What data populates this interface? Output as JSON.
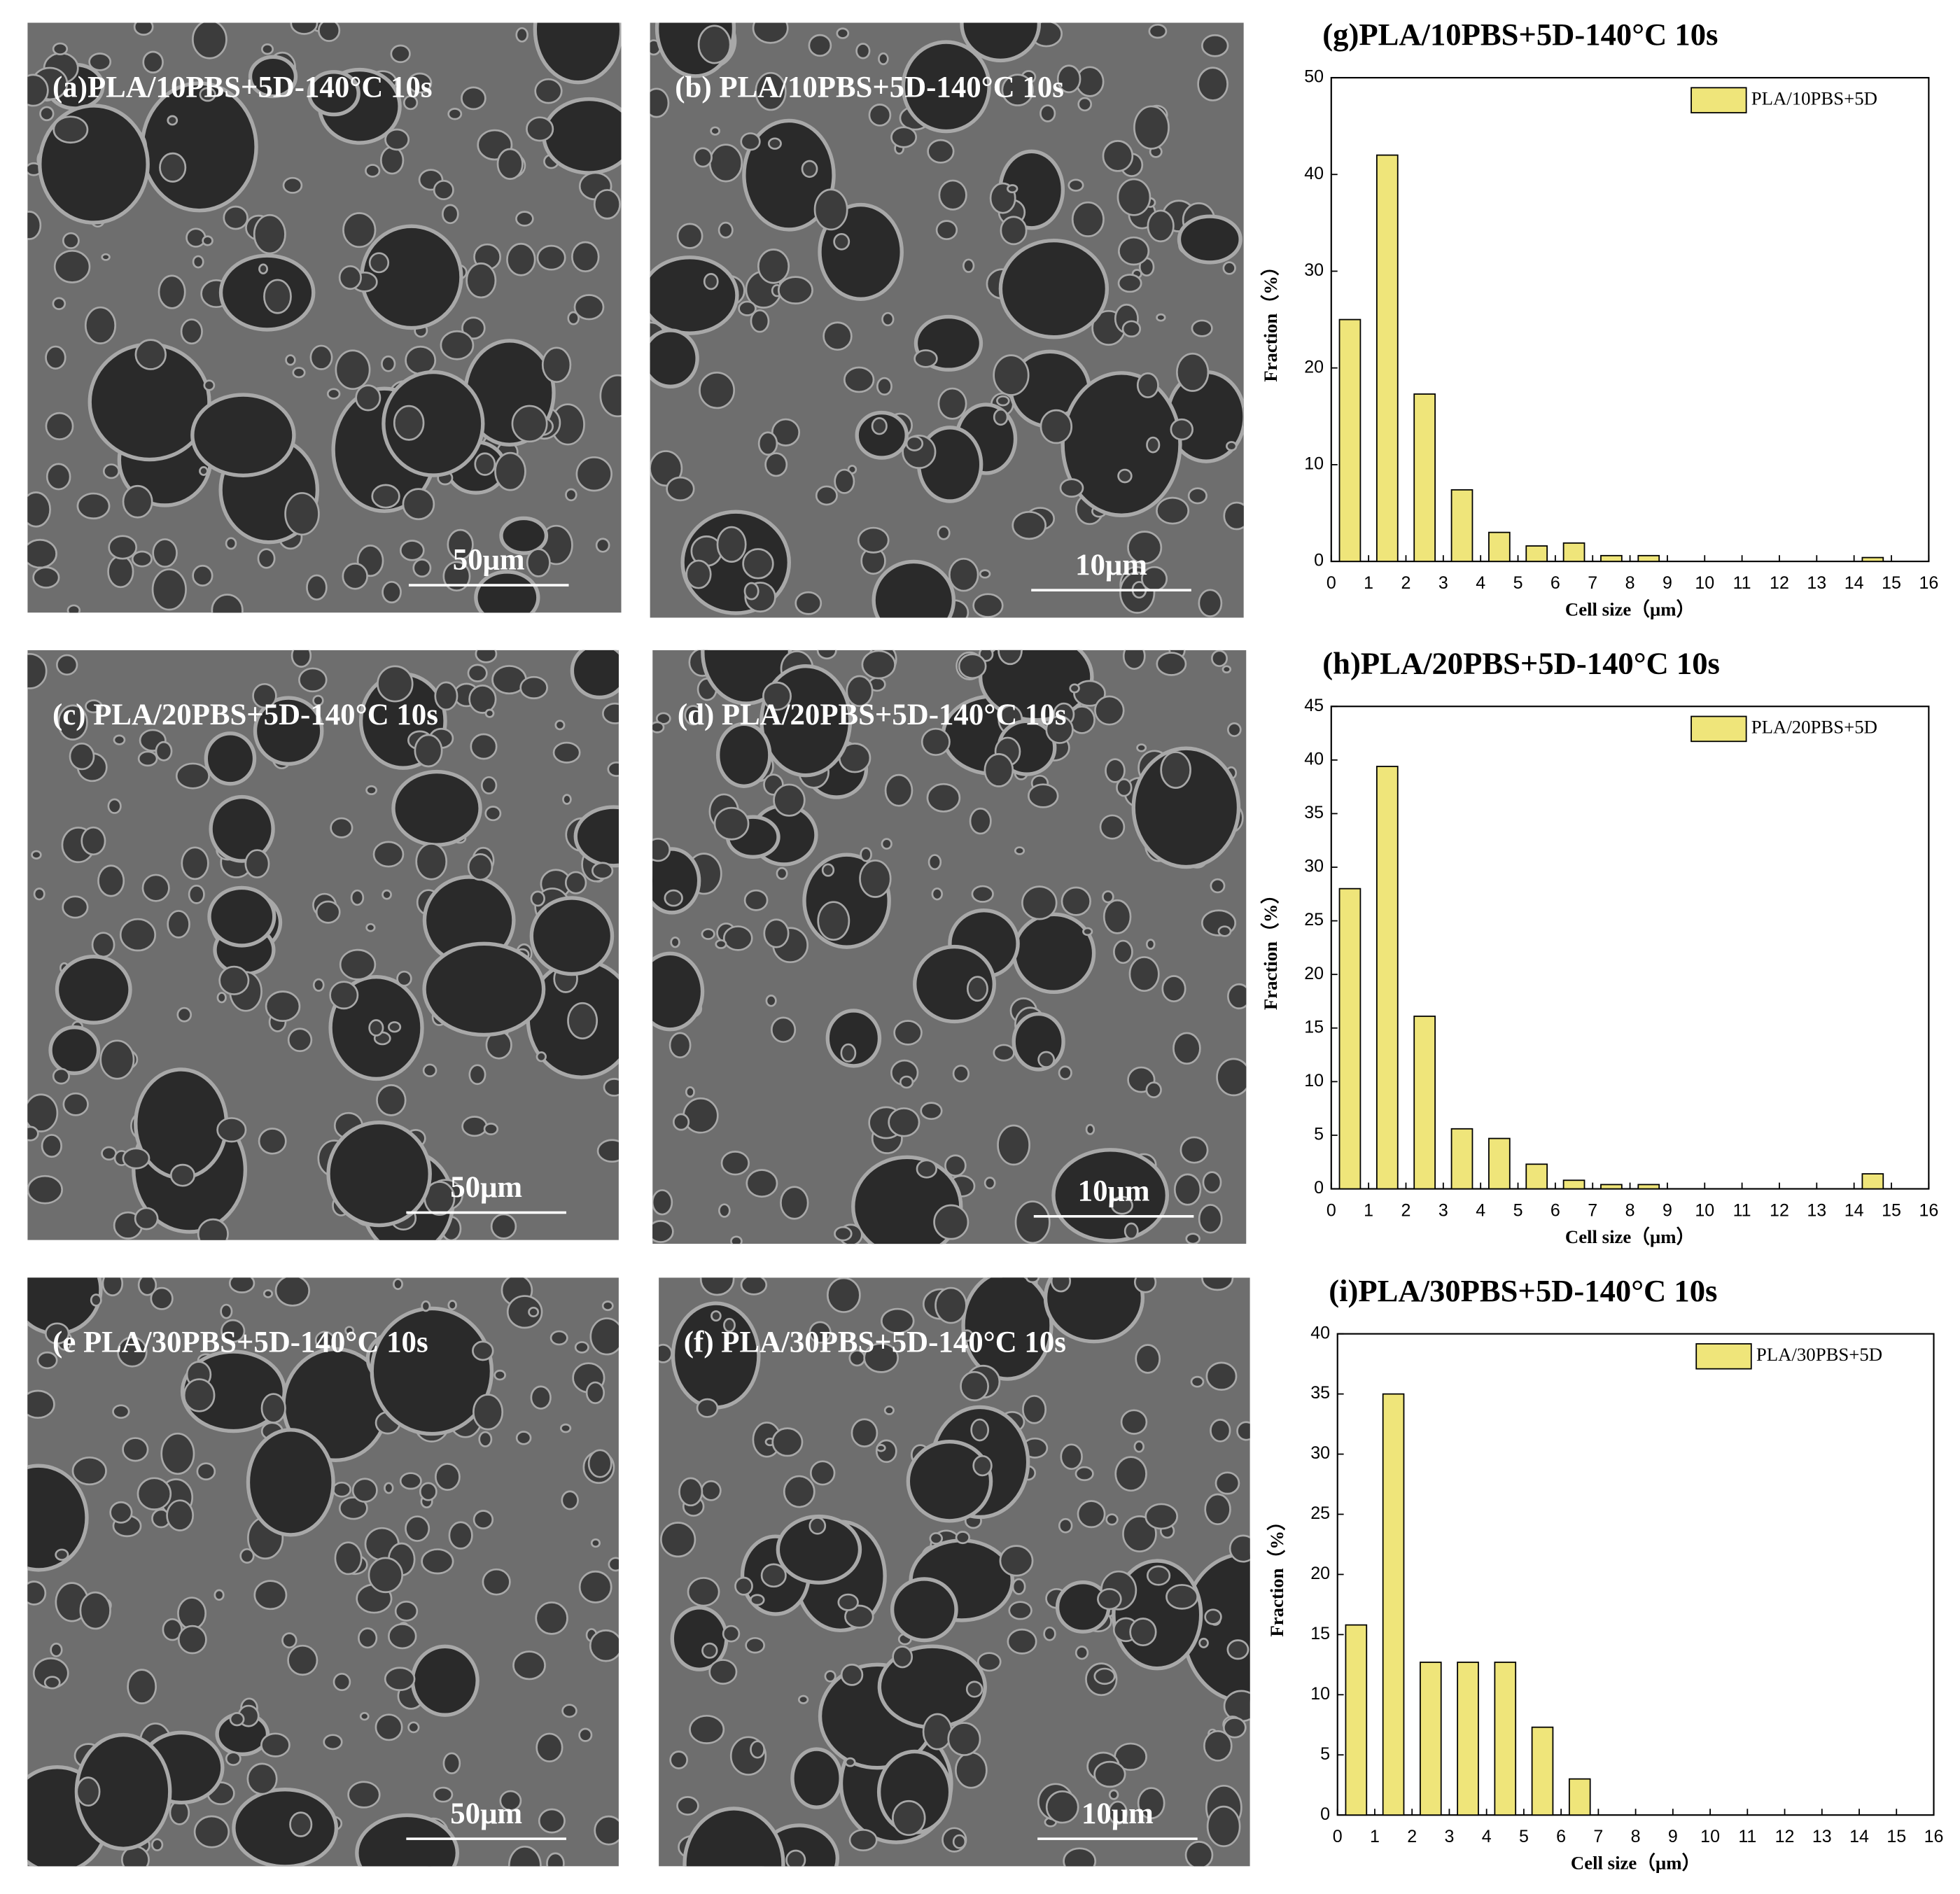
{
  "panels": [
    {
      "label": "(a)PLA/10PBS+5D-140°C 10s",
      "scale_bar": "50μm"
    },
    {
      "label": "(b) PLA/10PBS+5D-140°C 10s",
      "scale_bar": "10μm"
    },
    {
      "label": "(c) PLA/20PBS+5D-140°C 10s",
      "scale_bar": "50μm"
    },
    {
      "label": "(d) PLA/20PBS+5D-140°C 10s",
      "scale_bar": "10μm"
    },
    {
      "label": "(e PLA/30PBS+5D-140°C 10s",
      "scale_bar": "50μm"
    },
    {
      "label": "(f) PLA/30PBS+5D-140°C 10s",
      "scale_bar": "10μm"
    }
  ],
  "chart_data": [
    {
      "type": "bar",
      "title": "(g)PLA/10PBS+5D-140°C 10s",
      "xlabel": "Cell size（μm）",
      "ylabel": "Fraction（%）",
      "x": [
        0.5,
        1.5,
        2.5,
        3.5,
        4.5,
        5.5,
        6.5,
        7.5,
        8.5,
        9.5,
        10.5,
        11.5,
        12.5,
        13.5,
        14.5,
        15.5
      ],
      "series": [
        {
          "name": "PLA/10PBS+5D",
          "color": "#efe57a",
          "values": [
            25,
            42,
            17.3,
            7.4,
            3,
            1.6,
            1.9,
            0.6,
            0.6,
            0,
            0,
            0,
            0,
            0,
            0.4,
            0
          ]
        }
      ],
      "xlim": [
        0,
        16
      ],
      "xticks": [
        0,
        1,
        2,
        3,
        4,
        5,
        6,
        7,
        8,
        9,
        10,
        11,
        12,
        13,
        14,
        15,
        16
      ],
      "ylim": [
        0,
        50
      ],
      "yticks": [
        0,
        10,
        20,
        30,
        40,
        50
      ],
      "legend": "upper right"
    },
    {
      "type": "bar",
      "title": "(h)PLA/20PBS+5D-140°C 10s",
      "xlabel": "Cell size（μm）",
      "ylabel": "Fraction（%）",
      "x": [
        0.5,
        1.5,
        2.5,
        3.5,
        4.5,
        5.5,
        6.5,
        7.5,
        8.5,
        9.5,
        10.5,
        11.5,
        12.5,
        13.5,
        14.5,
        15.5
      ],
      "series": [
        {
          "name": "PLA/20PBS+5D",
          "color": "#efe57a",
          "values": [
            28,
            39.4,
            16.1,
            5.6,
            4.7,
            2.3,
            0.8,
            0.4,
            0.4,
            0,
            0,
            0,
            0,
            0,
            1.4,
            0
          ]
        }
      ],
      "xlim": [
        0,
        16
      ],
      "xticks": [
        0,
        1,
        2,
        3,
        4,
        5,
        6,
        7,
        8,
        9,
        10,
        11,
        12,
        13,
        14,
        15,
        16
      ],
      "ylim": [
        0,
        45
      ],
      "yticks": [
        0,
        5,
        10,
        15,
        20,
        25,
        30,
        35,
        40,
        45
      ],
      "legend": "upper right"
    },
    {
      "type": "bar",
      "title": "(i)PLA/30PBS+5D-140°C 10s",
      "xlabel": "Cell size（μm）",
      "ylabel": "Fraction（%）",
      "x": [
        0.5,
        1.5,
        2.5,
        3.5,
        4.5,
        5.5,
        6.5,
        7.5,
        8.5,
        9.5,
        10.5,
        11.5,
        12.5,
        13.5,
        14.5,
        15.5
      ],
      "series": [
        {
          "name": "PLA/30PBS+5D",
          "color": "#efe57a",
          "values": [
            15.8,
            35,
            12.7,
            12.7,
            12.7,
            7.3,
            3,
            0,
            0,
            0,
            0,
            0,
            0,
            0,
            0,
            0
          ]
        }
      ],
      "xlim": [
        0,
        16
      ],
      "xticks": [
        0,
        1,
        2,
        3,
        4,
        5,
        6,
        7,
        8,
        9,
        10,
        11,
        12,
        13,
        14,
        15,
        16
      ],
      "ylim": [
        0,
        40
      ],
      "yticks": [
        0,
        5,
        10,
        15,
        20,
        25,
        30,
        35,
        40
      ],
      "legend": "upper right"
    }
  ]
}
